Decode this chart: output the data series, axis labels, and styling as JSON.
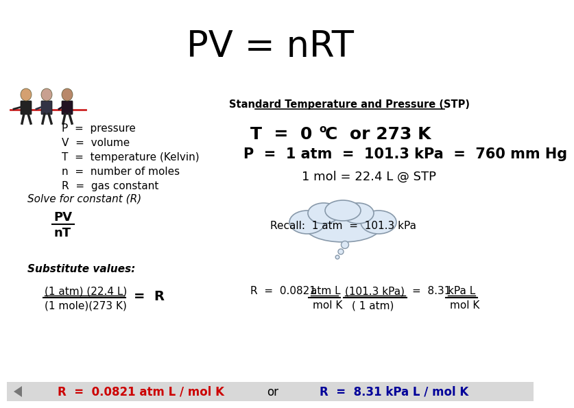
{
  "title": "PV = nRT",
  "title_fontsize": 38,
  "bg_color": "#ffffff",
  "variables": [
    "P  =  pressure",
    "V  =  volume",
    "T  =  temperature (Kelvin)",
    "n  =  number of moles",
    "R  =  gas constant"
  ],
  "stp_header": "Standard Temperature and Pressure (STP)",
  "stp_T_prefix": "T  =  0 ",
  "stp_T_deg": "o",
  "stp_T_suffix": "C  or 273 K",
  "stp_P": "P  =  1 atm  =  101.3 kPa  =  760 mm Hg",
  "stp_mol": "1 mol = 22.4 L @ STP",
  "solve_label": "Solve for constant (R)",
  "fraction_num": "PV",
  "fraction_den": "nT",
  "substitute_label": "Substitute values:",
  "sub_num": "(1 atm) (22.4 L)",
  "sub_den": "(1 mole)(273 K)",
  "recall_text": "Recall:  1 atm  =  101.3 kPa",
  "result_left": "R  =  0.0821 atm L / mol K",
  "result_or": "or",
  "result_right": "R  =  8.31 kPa L / mol K",
  "result_left_color": "#cc0000",
  "result_right_color": "#000099",
  "cloud_fill": "#dce8f5",
  "cloud_edge": "#8899aa",
  "text_color": "#000000",
  "bottom_bar_color": "#d8d8d8"
}
